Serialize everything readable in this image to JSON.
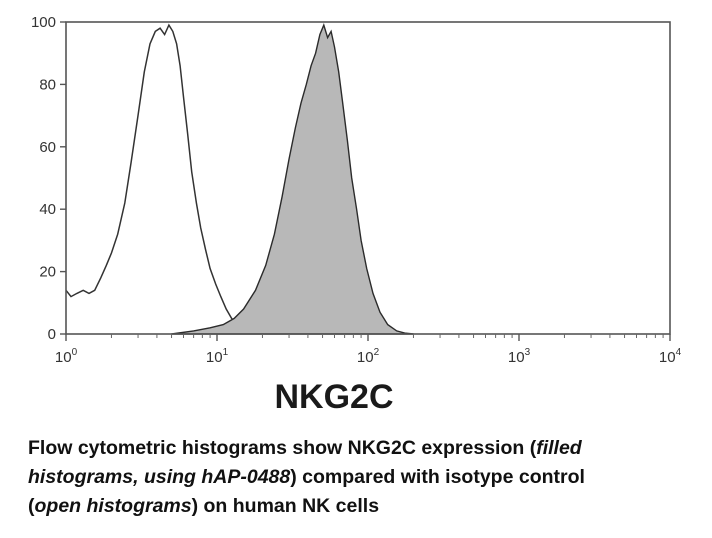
{
  "chart_data": {
    "type": "area",
    "title": "",
    "xlabel": "NKG2C",
    "ylabel": "",
    "x_scale": "log",
    "xlim": [
      1,
      10000
    ],
    "ylim": [
      0,
      100
    ],
    "grid": false,
    "legend": "none",
    "y_ticks": [
      0,
      20,
      40,
      60,
      80,
      100
    ],
    "y_tick_labels": [
      "0",
      "20",
      "40",
      "60",
      "80",
      "100"
    ],
    "x_ticks": [
      1,
      10,
      100,
      1000,
      10000
    ],
    "x_tick_labels": [
      {
        "base": "10",
        "exp": "0"
      },
      {
        "base": "10",
        "exp": "1"
      },
      {
        "base": "10",
        "exp": "2"
      },
      {
        "base": "10",
        "exp": "3"
      },
      {
        "base": "10",
        "exp": "4"
      }
    ],
    "series": [
      {
        "style": "open",
        "color": "#333333",
        "x": [
          1,
          1.08,
          1.18,
          1.3,
          1.42,
          1.55,
          1.7,
          1.85,
          2.0,
          2.2,
          2.45,
          2.7,
          3.0,
          3.3,
          3.6,
          3.9,
          4.2,
          4.5,
          4.8,
          5.1,
          5.4,
          5.7,
          6.0,
          6.4,
          6.8,
          7.3,
          7.8,
          8.4,
          9.0,
          9.8,
          10.6,
          11.5,
          12.5,
          14,
          16,
          18,
          20
        ],
        "y": [
          14,
          12,
          13,
          14,
          13,
          14,
          18,
          22,
          26,
          32,
          42,
          55,
          70,
          84,
          93,
          97,
          98,
          96,
          99,
          97,
          93,
          86,
          76,
          64,
          52,
          42,
          34,
          27,
          21,
          16,
          12,
          8,
          5,
          3,
          2,
          1,
          0
        ]
      },
      {
        "style": "filled",
        "color": "#b8b8b8",
        "x": [
          5,
          7,
          9,
          11,
          13,
          15,
          18,
          21,
          24,
          27,
          30,
          33,
          36,
          39,
          42,
          45,
          48,
          51,
          54,
          57,
          60,
          64,
          68,
          73,
          78,
          84,
          90,
          98,
          108,
          120,
          135,
          155,
          175,
          200
        ],
        "y": [
          0,
          1,
          2,
          3,
          5,
          8,
          14,
          22,
          32,
          44,
          56,
          66,
          74,
          80,
          86,
          90,
          96,
          99,
          95,
          97,
          92,
          84,
          74,
          62,
          50,
          40,
          30,
          21,
          13,
          7,
          3,
          1,
          0.3,
          0
        ]
      }
    ]
  },
  "caption": {
    "line1_a": "Flow cytometric histograms show NKG2C expression (",
    "line1_b": "filled",
    "line2_a": "histograms, using hAP-0488",
    "line2_b": ") compared with isotype control",
    "line3_a": "(",
    "line3_b": "open histograms",
    "line3_c": ") on human NK cells"
  }
}
